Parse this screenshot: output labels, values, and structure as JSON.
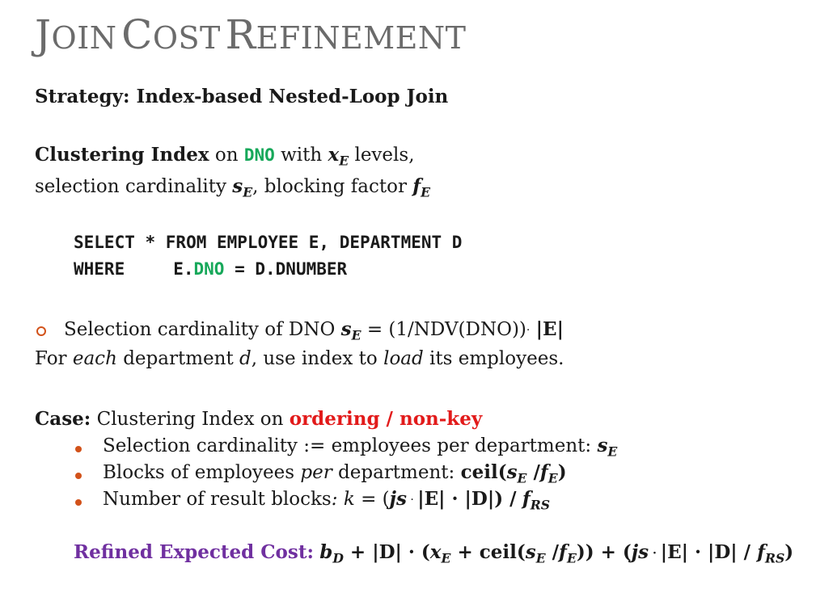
{
  "title": {
    "first_letters": [
      "J",
      "C",
      "R"
    ],
    "rest": [
      "OIN",
      "OST",
      "EFINEMENT"
    ]
  },
  "strategy": "Strategy: Index-based Nested-Loop Join",
  "clustering": {
    "label": "Clustering Index",
    "on": "on",
    "attr": "DNO",
    "with": "with",
    "x": "x",
    "sub_e": "E",
    "levels": "levels,",
    "line2_a": "selection cardinality",
    "s": "s",
    "line2_b": ", blocking factor",
    "f": "f"
  },
  "query": {
    "line1": "SELECT * FROM EMPLOYEE E, DEPARTMENT D",
    "where": "WHERE",
    "e_prefix": "E.",
    "dno": "DNO",
    "rest": " = D.DNUMBER"
  },
  "selection": {
    "text": "Selection cardinality of DNO",
    "formula": "= (1/NDV(DNO))",
    "dot": "·",
    "card": "|E|"
  },
  "each_line": {
    "a": "For",
    "each": "each",
    "b": "department",
    "d": "d",
    "c": ", use index to",
    "load": "load",
    "e": "its employees."
  },
  "case": {
    "label": "Case:",
    "text": "Clustering Index on",
    "highlight": "ordering / non-key",
    "bullets": [
      {
        "text": "Selection cardinality := employees per department:"
      },
      {
        "text_a": "Blocks of employees",
        "per": "per",
        "text_b": "department:",
        "formula": "ceil("
      },
      {
        "text": "Number of result blocks",
        "colon": ":",
        "k": "k",
        "eq": "= (",
        "js": "js",
        "rest": "|E| · |D|) /"
      }
    ]
  },
  "cost": {
    "label": "Refined Expected Cost:",
    "b": "b",
    "sub_d": "D",
    "sub_rs": "RS",
    "plus_d": "+ |D| · (",
    "ceil": "+ ceil(",
    "close": ")) + (",
    "js": "js",
    "tail": "|E| · |D| /",
    "end": ")"
  },
  "colors": {
    "green": "#17a85a",
    "red": "#e21a1a",
    "purple": "#7030a0",
    "bullet": "#d2521a",
    "title": "#6b6b6b"
  }
}
